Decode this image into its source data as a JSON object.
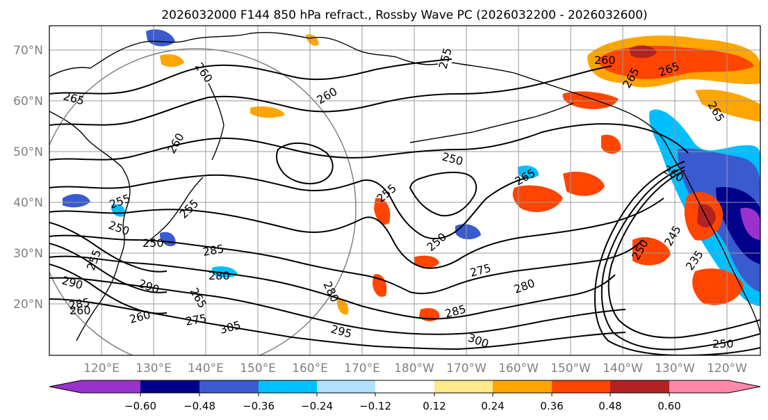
{
  "title": "2026032000 F144 850 hPa refract., Rossby Wave PC (2026032200 - 2026032600)",
  "lat_ticks": [
    "70°N",
    "60°N",
    "50°N",
    "40°N",
    "30°N",
    "20°N"
  ],
  "lon_ticks": [
    "120°E",
    "130°E",
    "140°E",
    "150°E",
    "160°E",
    "170°E",
    "180°W",
    "170°W",
    "160°W",
    "150°W",
    "140°W",
    "130°W",
    "120°W"
  ],
  "colorbar": {
    "colors": [
      "#9932cc",
      "#00008b",
      "#3a5bcf",
      "#00bfff",
      "#b0e2ff",
      "#ffffff",
      "#ffe98a",
      "#ffa500",
      "#ff4500",
      "#b22222",
      "#ff88aa"
    ],
    "labels": [
      "−0.60",
      "−0.48",
      "−0.36",
      "−0.24",
      "−0.12",
      "0.12",
      "0.24",
      "0.36",
      "0.48",
      "0.60"
    ]
  },
  "contour_labels": [
    "265",
    "260",
    "260",
    "255",
    "260",
    "265",
    "265",
    "265",
    "260",
    "250",
    "260",
    "265",
    "255",
    "250",
    "255",
    "275",
    "280",
    "285",
    "250",
    "245",
    "235",
    "250",
    "255",
    "250",
    "285",
    "280",
    "290",
    "290",
    "265",
    "260",
    "275",
    "305",
    "295",
    "300",
    "280",
    "285",
    "255",
    "260",
    "250"
  ]
}
